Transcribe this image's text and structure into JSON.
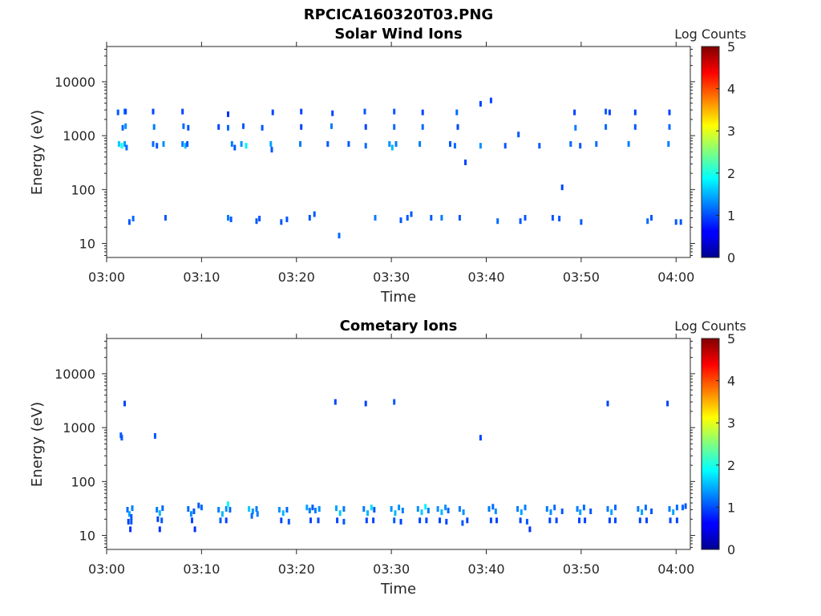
{
  "figure": {
    "filename": "RPCICA160320T03.PNG"
  },
  "chart_data": [
    {
      "type": "heatmap",
      "title": "Solar Wind Ions",
      "xlabel": "Time",
      "ylabel": "Energy (eV)",
      "x_ticks": [
        "03:00",
        "03:10",
        "03:20",
        "03:30",
        "03:40",
        "03:50",
        "04:00"
      ],
      "x_range_min": [
        0,
        61.5
      ],
      "y_ticks": [
        "10",
        "100",
        "1000",
        "10000"
      ],
      "y_scale": "log",
      "y_range_ev": [
        5.5,
        45000
      ],
      "colorbar": {
        "label": "Log Counts",
        "ticks": [
          "0",
          "1",
          "2",
          "3",
          "4",
          "5"
        ],
        "range": [
          0,
          5
        ],
        "colormap": "jet"
      },
      "cells": [
        [
          1.2,
          2700,
          1.0
        ],
        [
          1.9,
          2800,
          1.3
        ],
        [
          2.0,
          2800,
          0.9
        ],
        [
          1.7,
          1400,
          1.1
        ],
        [
          2.0,
          1500,
          1.3
        ],
        [
          1.3,
          700,
          1.6
        ],
        [
          1.6,
          650,
          1.9
        ],
        [
          1.9,
          700,
          1.4
        ],
        [
          2.1,
          600,
          1.1
        ],
        [
          2.4,
          25,
          1.0
        ],
        [
          2.8,
          29,
          1.1
        ],
        [
          4.9,
          2800,
          0.9
        ],
        [
          5.0,
          1450,
          1.2
        ],
        [
          4.9,
          700,
          1.1
        ],
        [
          5.3,
          650,
          1.0
        ],
        [
          6.0,
          700,
          1.3
        ],
        [
          6.2,
          30,
          1.0
        ],
        [
          8.0,
          2800,
          0.9
        ],
        [
          8.1,
          1500,
          1.1
        ],
        [
          8.0,
          700,
          1.2
        ],
        [
          8.3,
          650,
          1.5
        ],
        [
          8.5,
          700,
          1.0
        ],
        [
          8.6,
          1400,
          1.0
        ],
        [
          11.8,
          1450,
          0.9
        ],
        [
          12.8,
          2500,
          0.8
        ],
        [
          12.8,
          1400,
          1.1
        ],
        [
          12.8,
          30,
          1.2
        ],
        [
          13.1,
          28,
          1.0
        ],
        [
          13.2,
          700,
          1.2
        ],
        [
          13.5,
          600,
          1.0
        ],
        [
          14.2,
          700,
          1.3
        ],
        [
          14.4,
          1500,
          1.0
        ],
        [
          14.7,
          650,
          1.8
        ],
        [
          15.8,
          26,
          1.0
        ],
        [
          16.1,
          29,
          1.0
        ],
        [
          16.4,
          1400,
          1.0
        ],
        [
          17.3,
          700,
          1.4
        ],
        [
          17.4,
          550,
          1.0
        ],
        [
          17.5,
          2700,
          0.9
        ],
        [
          18.4,
          25,
          1.0
        ],
        [
          19.0,
          28,
          1.0
        ],
        [
          20.4,
          700,
          1.2
        ],
        [
          20.5,
          1450,
          0.9
        ],
        [
          20.5,
          2800,
          0.9
        ],
        [
          21.4,
          30,
          1.0
        ],
        [
          21.9,
          35,
          1.0
        ],
        [
          23.3,
          700,
          1.0
        ],
        [
          23.7,
          1500,
          1.2
        ],
        [
          23.8,
          2600,
          0.9
        ],
        [
          24.5,
          14,
          1.1
        ],
        [
          25.5,
          700,
          1.0
        ],
        [
          27.2,
          2800,
          1.0
        ],
        [
          27.3,
          1450,
          0.9
        ],
        [
          27.3,
          650,
          1.1
        ],
        [
          28.3,
          30,
          1.2
        ],
        [
          29.8,
          700,
          1.3
        ],
        [
          30.1,
          600,
          1.5
        ],
        [
          30.3,
          2800,
          1.0
        ],
        [
          30.3,
          1450,
          1.1
        ],
        [
          30.5,
          700,
          1.2
        ],
        [
          31.0,
          27,
          1.0
        ],
        [
          31.7,
          30,
          1.0
        ],
        [
          32.1,
          35,
          1.0
        ],
        [
          33.0,
          700,
          1.2
        ],
        [
          33.3,
          2700,
          0.9
        ],
        [
          33.3,
          1450,
          1.1
        ],
        [
          34.2,
          30,
          1.0
        ],
        [
          35.3,
          30,
          1.2
        ],
        [
          36.2,
          700,
          1.0
        ],
        [
          36.7,
          650,
          1.1
        ],
        [
          36.9,
          2700,
          1.1
        ],
        [
          37.0,
          1450,
          0.9
        ],
        [
          37.2,
          30,
          1.0
        ],
        [
          37.8,
          320,
          0.9
        ],
        [
          39.4,
          650,
          1.3
        ],
        [
          39.4,
          3900,
          0.9
        ],
        [
          40.5,
          4500,
          0.9
        ],
        [
          41.2,
          26,
          1.1
        ],
        [
          42.0,
          650,
          1.0
        ],
        [
          43.4,
          1050,
          1.0
        ],
        [
          43.6,
          26,
          1.0
        ],
        [
          44.1,
          30,
          1.0
        ],
        [
          45.6,
          650,
          1.0
        ],
        [
          47.0,
          30,
          1.0
        ],
        [
          47.7,
          29,
          1.0
        ],
        [
          48.0,
          110,
          0.9
        ],
        [
          48.9,
          700,
          1.1
        ],
        [
          49.3,
          2700,
          0.9
        ],
        [
          49.4,
          1400,
          1.2
        ],
        [
          49.9,
          650,
          1.0
        ],
        [
          50.0,
          25,
          1.0
        ],
        [
          51.6,
          700,
          1.1
        ],
        [
          52.6,
          2800,
          1.0
        ],
        [
          52.6,
          1450,
          1.1
        ],
        [
          53.0,
          2700,
          0.9
        ],
        [
          55.0,
          700,
          1.2
        ],
        [
          55.7,
          2700,
          0.9
        ],
        [
          55.7,
          1450,
          1.0
        ],
        [
          57.0,
          26,
          1.1
        ],
        [
          57.4,
          30,
          1.0
        ],
        [
          59.2,
          700,
          1.2
        ],
        [
          59.3,
          1450,
          1.1
        ],
        [
          59.3,
          2700,
          0.9
        ],
        [
          60.0,
          25,
          1.0
        ],
        [
          60.5,
          25,
          1.0
        ]
      ]
    },
    {
      "type": "heatmap",
      "title": "Cometary Ions",
      "xlabel": "Time",
      "ylabel": "Energy (eV)",
      "x_ticks": [
        "03:00",
        "03:10",
        "03:20",
        "03:30",
        "03:40",
        "03:50",
        "04:00"
      ],
      "x_range_min": [
        0,
        61.5
      ],
      "y_ticks": [
        "10",
        "100",
        "1000",
        "10000"
      ],
      "y_scale": "log",
      "y_range_ev": [
        5.5,
        45000
      ],
      "colorbar": {
        "label": "Log Counts",
        "ticks": [
          "0",
          "1",
          "2",
          "3",
          "4",
          "5"
        ],
        "range": [
          0,
          5
        ],
        "colormap": "jet"
      },
      "cells": [
        [
          1.5,
          720,
          1.0
        ],
        [
          1.6,
          650,
          1.0
        ],
        [
          1.9,
          2800,
          0.9
        ],
        [
          5.1,
          700,
          1.0
        ],
        [
          2.2,
          30,
          1.1
        ],
        [
          2.4,
          25,
          1.4
        ],
        [
          2.6,
          22,
          1.0
        ],
        [
          2.7,
          32,
          1.2
        ],
        [
          2.3,
          18,
          0.9
        ],
        [
          2.6,
          18,
          1.0
        ],
        [
          2.5,
          13,
          0.8
        ],
        [
          5.3,
          30,
          1.2
        ],
        [
          5.6,
          26,
          1.5
        ],
        [
          5.9,
          32,
          1.1
        ],
        [
          5.4,
          20,
          0.9
        ],
        [
          5.8,
          19,
          1.0
        ],
        [
          5.6,
          13,
          0.8
        ],
        [
          8.6,
          31,
          1.1
        ],
        [
          8.9,
          25,
          1.3
        ],
        [
          9.2,
          28,
          1.0
        ],
        [
          9.0,
          19,
          0.9
        ],
        [
          9.3,
          13,
          0.8
        ],
        [
          9.7,
          36,
          1.0
        ],
        [
          10.0,
          33,
          1.1
        ],
        [
          11.8,
          30,
          1.2
        ],
        [
          12.2,
          25,
          1.5
        ],
        [
          12.6,
          31,
          1.3
        ],
        [
          12.8,
          38,
          1.9
        ],
        [
          13.0,
          30,
          1.1
        ],
        [
          12.0,
          19,
          1.0
        ],
        [
          12.6,
          19,
          0.9
        ],
        [
          15.0,
          31,
          1.6
        ],
        [
          15.4,
          28,
          1.3
        ],
        [
          15.8,
          31,
          1.2
        ],
        [
          15.3,
          23,
          1.1
        ],
        [
          15.9,
          25,
          1.2
        ],
        [
          18.2,
          30,
          1.3
        ],
        [
          18.6,
          26,
          1.5
        ],
        [
          19.0,
          30,
          1.1
        ],
        [
          18.4,
          19,
          0.9
        ],
        [
          19.2,
          18,
          1.0
        ],
        [
          21.1,
          33,
          1.4
        ],
        [
          21.4,
          29,
          1.2
        ],
        [
          21.7,
          33,
          1.0
        ],
        [
          22.0,
          29,
          1.2
        ],
        [
          22.4,
          31,
          1.3
        ],
        [
          21.5,
          19,
          0.9
        ],
        [
          22.3,
          19,
          0.9
        ],
        [
          24.2,
          32,
          1.4
        ],
        [
          24.6,
          26,
          1.6
        ],
        [
          25.0,
          31,
          1.2
        ],
        [
          24.3,
          19,
          0.9
        ],
        [
          25.0,
          18,
          1.0
        ],
        [
          24.1,
          3000,
          0.9
        ],
        [
          27.1,
          31,
          1.2
        ],
        [
          27.5,
          26,
          1.5
        ],
        [
          27.9,
          33,
          1.7
        ],
        [
          28.2,
          30,
          1.0
        ],
        [
          27.4,
          19,
          0.9
        ],
        [
          28.1,
          19,
          0.9
        ],
        [
          27.3,
          2800,
          0.9
        ],
        [
          30.0,
          31,
          1.3
        ],
        [
          30.4,
          26,
          1.5
        ],
        [
          30.8,
          33,
          1.3
        ],
        [
          31.2,
          29,
          1.2
        ],
        [
          30.3,
          19,
          1.0
        ],
        [
          31.0,
          18,
          0.9
        ],
        [
          30.3,
          3000,
          1.0
        ],
        [
          32.8,
          31,
          1.3
        ],
        [
          33.2,
          27,
          1.6
        ],
        [
          33.6,
          34,
          1.8
        ],
        [
          33.9,
          29,
          1.2
        ],
        [
          33.0,
          19,
          0.9
        ],
        [
          33.7,
          19,
          0.9
        ],
        [
          34.9,
          31,
          1.3
        ],
        [
          35.3,
          27,
          1.5
        ],
        [
          35.7,
          33,
          1.3
        ],
        [
          36.0,
          29,
          1.1
        ],
        [
          35.1,
          19,
          0.9
        ],
        [
          35.8,
          18,
          0.9
        ],
        [
          37.2,
          31,
          1.2
        ],
        [
          37.6,
          27,
          1.3
        ],
        [
          38.0,
          19,
          0.9
        ],
        [
          37.5,
          17,
          1.0
        ],
        [
          39.4,
          650,
          0.9
        ],
        [
          40.3,
          31,
          1.2
        ],
        [
          40.7,
          34,
          1.1
        ],
        [
          41.0,
          28,
          1.3
        ],
        [
          40.5,
          19,
          0.9
        ],
        [
          41.1,
          19,
          0.9
        ],
        [
          43.3,
          31,
          1.2
        ],
        [
          43.7,
          27,
          1.4
        ],
        [
          44.1,
          33,
          1.2
        ],
        [
          43.6,
          19,
          0.9
        ],
        [
          44.3,
          18,
          1.0
        ],
        [
          44.6,
          13,
          0.8
        ],
        [
          46.4,
          31,
          1.2
        ],
        [
          46.8,
          27,
          1.3
        ],
        [
          47.2,
          33,
          1.1
        ],
        [
          46.7,
          19,
          0.9
        ],
        [
          47.4,
          19,
          0.9
        ],
        [
          48.0,
          28,
          1.0
        ],
        [
          49.6,
          31,
          1.2
        ],
        [
          49.9,
          27,
          1.4
        ],
        [
          50.3,
          33,
          1.1
        ],
        [
          49.8,
          19,
          0.9
        ],
        [
          50.4,
          19,
          0.9
        ],
        [
          51.0,
          28,
          1.0
        ],
        [
          52.8,
          31,
          1.2
        ],
        [
          53.2,
          27,
          1.4
        ],
        [
          53.6,
          33,
          1.1
        ],
        [
          53.0,
          19,
          0.9
        ],
        [
          53.6,
          19,
          0.9
        ],
        [
          52.8,
          2800,
          0.9
        ],
        [
          56.0,
          31,
          1.2
        ],
        [
          56.4,
          27,
          1.4
        ],
        [
          56.8,
          33,
          1.1
        ],
        [
          56.2,
          19,
          0.9
        ],
        [
          56.9,
          19,
          0.9
        ],
        [
          57.4,
          28,
          1.0
        ],
        [
          59.3,
          31,
          1.2
        ],
        [
          59.7,
          27,
          1.4
        ],
        [
          60.1,
          33,
          1.1
        ],
        [
          59.4,
          19,
          0.9
        ],
        [
          60.1,
          19,
          0.9
        ],
        [
          60.7,
          33,
          1.1
        ],
        [
          61.0,
          35,
          1.0
        ],
        [
          59.1,
          2800,
          0.9
        ]
      ]
    }
  ]
}
